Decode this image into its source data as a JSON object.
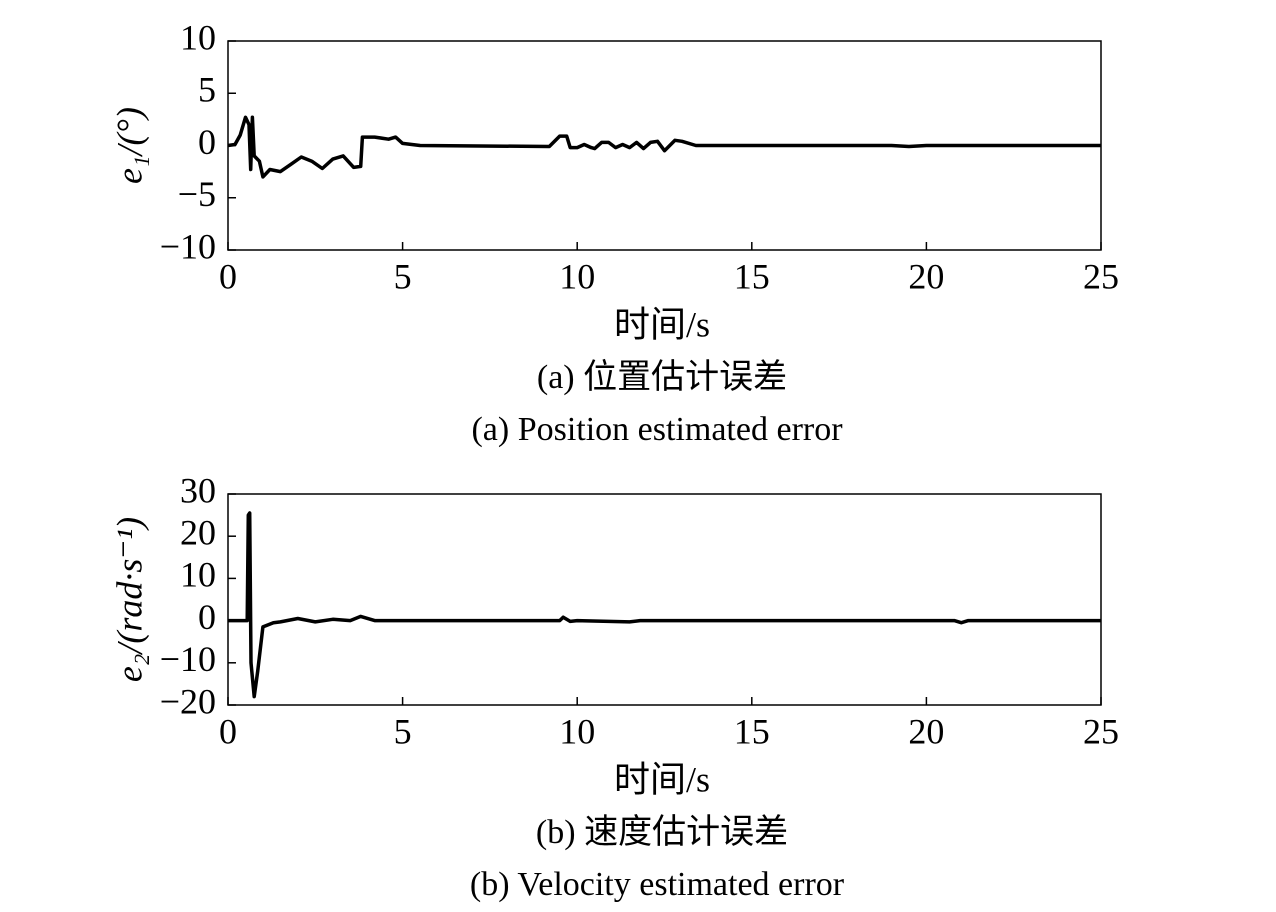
{
  "chart_data": [
    {
      "type": "line",
      "ylabel": "e₁/(°)",
      "xlabel": "时间/s",
      "caption": "(a) 位置估计误差",
      "caption_en": "(a)  Position estimated error",
      "xlim": [
        0,
        25
      ],
      "xticks": [
        0,
        5,
        10,
        15,
        20,
        25
      ],
      "ylim": [
        -10,
        10
      ],
      "yticks": [
        {
          "value": -10,
          "label": "−10"
        },
        {
          "value": -5,
          "label": "−5"
        },
        0,
        5,
        10
      ],
      "x": [
        0,
        0.2,
        0.35,
        0.5,
        0.6,
        0.65,
        0.7,
        0.75,
        0.9,
        1.0,
        1.2,
        1.5,
        1.8,
        2.1,
        2.4,
        2.7,
        3.0,
        3.3,
        3.6,
        3.8,
        3.85,
        4.2,
        4.6,
        4.8,
        5.0,
        5.5,
        9.2,
        9.5,
        9.7,
        9.8,
        10.0,
        10.2,
        10.4,
        10.5,
        10.7,
        10.9,
        11.1,
        11.3,
        11.5,
        11.7,
        11.9,
        12.1,
        12.3,
        12.5,
        12.8,
        13.0,
        13.4,
        19.0,
        19.5,
        20,
        25
      ],
      "series": [
        {
          "color": "#000000",
          "values": [
            0,
            0.1,
            1,
            2.7,
            2,
            -2.3,
            2.7,
            -1,
            -1.5,
            -3,
            -2.3,
            -2.5,
            -1.8,
            -1.1,
            -1.5,
            -2.2,
            -1.3,
            -1,
            -2.1,
            -2,
            0.8,
            0.8,
            0.6,
            0.8,
            0.2,
            0,
            -0.1,
            0.9,
            0.9,
            -0.2,
            -0.2,
            0.1,
            -0.2,
            -0.3,
            0.3,
            0.3,
            -0.2,
            0.1,
            -0.2,
            0.3,
            -0.3,
            0.3,
            0.4,
            -0.5,
            0.5,
            0.4,
            0,
            0,
            -0.1,
            0,
            0
          ]
        }
      ]
    },
    {
      "type": "line",
      "ylabel": "e₂/(rad·s⁻¹)",
      "xlabel": "时间/s",
      "caption": "(b) 速度估计误差",
      "caption_en": "(b) Velocity estimated error",
      "xlim": [
        0,
        25
      ],
      "xticks": [
        0,
        5,
        10,
        15,
        20,
        25
      ],
      "ylim": [
        -20,
        30
      ],
      "yticks": [
        {
          "value": -20,
          "label": "−20"
        },
        {
          "value": -10,
          "label": "−10"
        },
        0,
        10,
        20,
        30
      ],
      "x": [
        0,
        0.55,
        0.58,
        0.62,
        0.66,
        0.75,
        0.85,
        1.0,
        1.3,
        1.5,
        2.0,
        2.5,
        3.0,
        3.5,
        3.8,
        4.2,
        9.5,
        9.6,
        9.8,
        10,
        11.5,
        11.8,
        20.8,
        21,
        21.2,
        25
      ],
      "series": [
        {
          "color": "#000000",
          "values": [
            0,
            0,
            25,
            25.5,
            -10,
            -18,
            -12,
            -1.5,
            -0.5,
            -0.3,
            0.5,
            -0.3,
            0.3,
            0,
            1,
            0,
            0,
            0.8,
            -0.2,
            0,
            -0.3,
            0,
            0,
            -0.5,
            0,
            0
          ]
        }
      ]
    }
  ]
}
